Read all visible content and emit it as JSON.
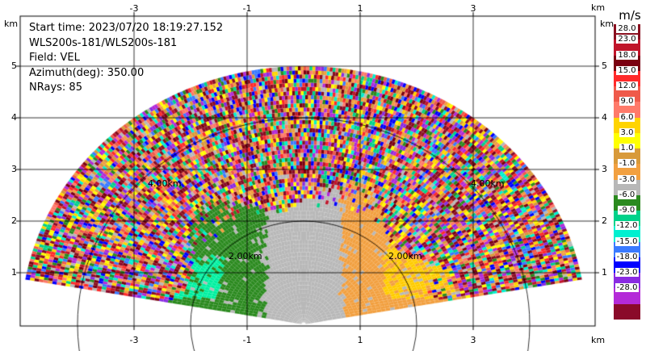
{
  "info": {
    "start_time": "Start time: 2023/07/20 18:19:27.152",
    "instrument": "WLS200s-181/WLS200s-181",
    "field": "Field: VEL",
    "azimuth": "Azimuth(deg): 350.00",
    "nrays": "NRays: 85"
  },
  "axes": {
    "x_ticks": [
      "-3",
      "-1",
      "1",
      "3"
    ],
    "y_ticks": [
      "1",
      "2",
      "3",
      "4",
      "5"
    ],
    "unit_label": "km",
    "range_ring_labels": [
      "4.00km",
      "2.00km",
      "2.00km",
      "4.00km"
    ]
  },
  "colorbar": {
    "unit": "m/s",
    "labels": [
      "28.0",
      "23.0",
      "18.0",
      "15.0",
      "12.0",
      "9.0",
      "6.0",
      "3.0",
      "1.0",
      "-1.0",
      "-3.0",
      "-6.0",
      "-9.0",
      "-12.0",
      "-15.0",
      "-18.0",
      "-23.0",
      "-28.0"
    ],
    "colors": [
      "#8a0f1f",
      "#c0152a",
      "#7a0010",
      "#ff2a2a",
      "#ef5a4a",
      "#ff7a6a",
      "#ffd400",
      "#ffff00",
      "#d89a3a",
      "#f2a040",
      "#b8b8b8",
      "#2b8a1f",
      "#00d28a",
      "#00f0d0",
      "#3a7aff",
      "#0000ff",
      "#8a2be2",
      "#b42ad8",
      "#8a0a2a"
    ]
  }
}
